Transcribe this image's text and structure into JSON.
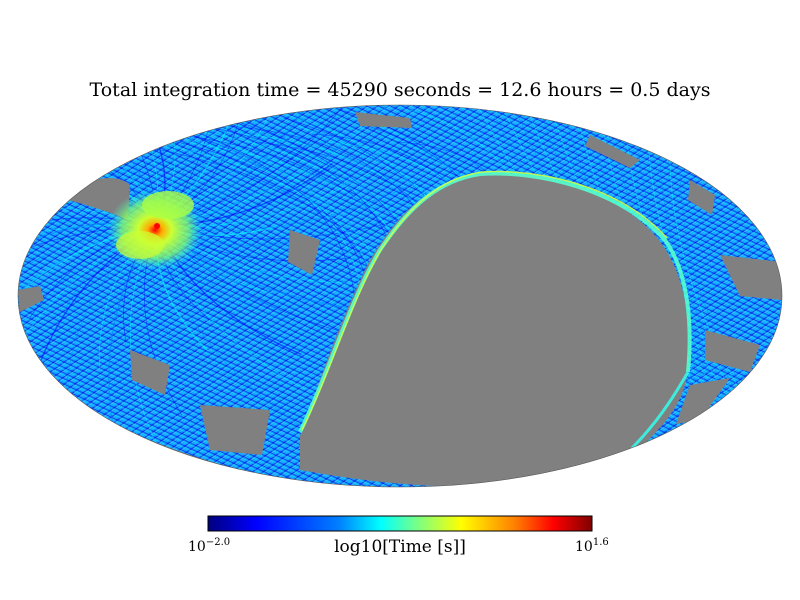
{
  "chart_data": {
    "type": "heatmap",
    "projection": "mollweide",
    "title": "Total integration time = 45290 seconds = 12.6 hours = 0.5 days",
    "colorbar": {
      "label": "log10[Time [s]]",
      "min_label": {
        "base": "10",
        "exponent": "−2.0"
      },
      "max_label": {
        "base": "10",
        "exponent": "1.6"
      },
      "log_range": [
        -2.0,
        1.6
      ],
      "colormap": "jet"
    },
    "unobserved_color": "#808080",
    "hotspot": {
      "description": "concentrated high-exposure region",
      "lon_deg": 115,
      "lat_deg": 25,
      "log_value": 1.1
    },
    "totals": {
      "seconds": 45290,
      "hours": 12.6,
      "days": 0.5
    }
  },
  "colors": {
    "background": "#ffffff",
    "masked": "#808080",
    "jet_stops": [
      "#00007f",
      "#0000ff",
      "#007fff",
      "#00ffff",
      "#7fff7f",
      "#ffff00",
      "#ff7f00",
      "#ff0000",
      "#7f0000"
    ]
  }
}
